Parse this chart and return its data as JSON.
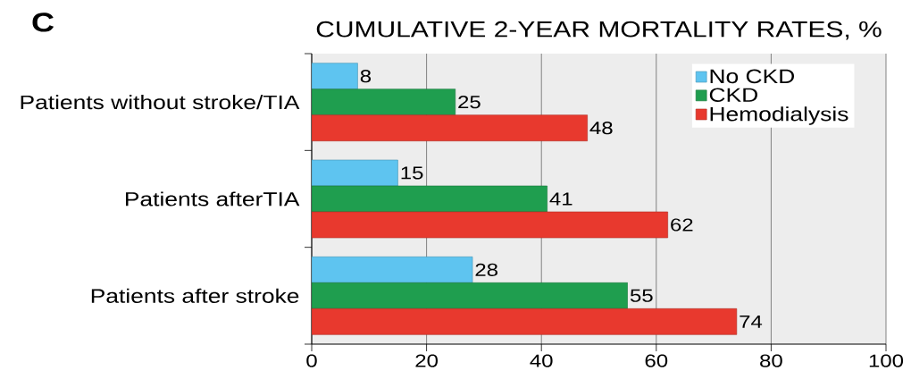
{
  "chart_data": {
    "type": "bar",
    "orientation": "horizontal",
    "title": "CUMULATIVE 2-YEAR MORTALITY RATES, %",
    "annotations": [
      "C"
    ],
    "categories": [
      "Patients without stroke/TIA",
      "Patients afterTIA",
      "Patients after stroke"
    ],
    "series": [
      {
        "name": "No CKD",
        "color": "#5ec4f0",
        "values": [
          8,
          15,
          28
        ]
      },
      {
        "name": "CKD",
        "color": "#1f9e4f",
        "values": [
          25,
          41,
          55
        ]
      },
      {
        "name": "Hemodialysis",
        "color": "#e8392e",
        "values": [
          48,
          62,
          74
        ]
      }
    ],
    "xlim": [
      0,
      100
    ],
    "xticks": [
      0,
      20,
      40,
      60,
      80,
      100
    ],
    "grid": "x",
    "legend": "top right",
    "data_labels": true
  }
}
